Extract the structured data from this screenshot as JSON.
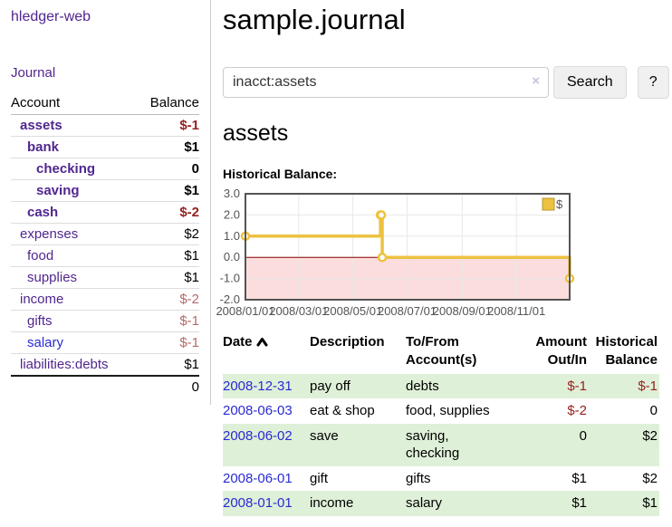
{
  "sidebar": {
    "app_title": "hledger-web",
    "journal_link": "Journal",
    "accounts": {
      "col_account": "Account",
      "col_balance": "Balance",
      "rows": [
        {
          "name": "assets",
          "indent": 0,
          "bold": true,
          "color": "purple",
          "balance": "$-1",
          "balance_style": "neg"
        },
        {
          "name": "bank",
          "indent": 1,
          "bold": true,
          "color": "purple",
          "balance": "$1",
          "balance_style": "pos"
        },
        {
          "name": "checking",
          "indent": 2,
          "bold": true,
          "color": "purple",
          "balance": "0",
          "balance_style": "pos"
        },
        {
          "name": "saving",
          "indent": 2,
          "bold": true,
          "color": "purple",
          "balance": "$1",
          "balance_style": "pos"
        },
        {
          "name": "cash",
          "indent": 1,
          "bold": true,
          "color": "purple",
          "balance": "$-2",
          "balance_style": "neg"
        },
        {
          "name": "expenses",
          "indent": 0,
          "bold": false,
          "color": "purple",
          "balance": "$2",
          "balance_style": "pos"
        },
        {
          "name": "food",
          "indent": 1,
          "bold": false,
          "color": "purple",
          "balance": "$1",
          "balance_style": "pos"
        },
        {
          "name": "supplies",
          "indent": 1,
          "bold": false,
          "color": "purple",
          "balance": "$1",
          "balance_style": "pos"
        },
        {
          "name": "income",
          "indent": 0,
          "bold": false,
          "color": "purple",
          "balance": "$-2",
          "balance_style": "neg_faded"
        },
        {
          "name": "gifts",
          "indent": 1,
          "bold": false,
          "color": "purple",
          "balance": "$-1",
          "balance_style": "neg_faded"
        },
        {
          "name": "salary",
          "indent": 1,
          "bold": false,
          "color": "blue",
          "balance": "$-1",
          "balance_style": "neg_faded"
        },
        {
          "name": "liabilities:debts",
          "indent": 0,
          "bold": false,
          "color": "purple",
          "balance": "$1",
          "balance_style": "pos"
        }
      ],
      "total": "0"
    }
  },
  "main": {
    "title": "sample.journal",
    "search": {
      "value": "inacct:assets",
      "clear_icon": "×",
      "search_button": "Search",
      "help_button": "?"
    },
    "account_heading": "assets",
    "chart_heading": "Historical Balance:"
  },
  "chart_data": {
    "type": "line",
    "step": true,
    "title": "Historical Balance:",
    "series": [
      {
        "name": "$",
        "color": "#edc240",
        "points": [
          [
            "2008-01-01",
            1
          ],
          [
            "2008-06-01",
            2
          ],
          [
            "2008-06-02",
            2
          ],
          [
            "2008-06-03",
            0
          ],
          [
            "2008-12-31",
            -1
          ]
        ]
      }
    ],
    "x_range": [
      "2008-01-01",
      "2008-12-31"
    ],
    "ylim": [
      -2,
      3
    ],
    "y_ticks": [
      "3.0",
      "2.0",
      "1.0",
      "0.0",
      "-1.0",
      "-2.0"
    ],
    "y_tick_values": [
      3,
      2,
      1,
      0,
      -1,
      -2
    ],
    "x_ticks": [
      {
        "label": "2008/01/01",
        "date": "2008-01-01"
      },
      {
        "label": "2008/03/01",
        "date": "2008-03-01"
      },
      {
        "label": "2008/05/01",
        "date": "2008-05-01"
      },
      {
        "label": "2008/07/01",
        "date": "2008-07-01"
      },
      {
        "label": "2008/09/01",
        "date": "2008-09-01"
      },
      {
        "label": "2008/11/01",
        "date": "2008-11-01"
      }
    ],
    "grid": true,
    "legend": {
      "label": "$",
      "position": "top-right"
    },
    "negative_region_color": "#fbdddd",
    "zero_line_color": "#8b0000",
    "plot_border_color": "#545454",
    "grid_color": "#e8e8e8",
    "tick_text_color": "#545454",
    "legend_swatch_border": "#b8962e"
  },
  "register_table": {
    "columns": [
      {
        "lines": [
          "Date"
        ],
        "align": "left",
        "sortable": true,
        "sort": "asc"
      },
      {
        "lines": [
          "Description"
        ],
        "align": "left"
      },
      {
        "lines": [
          "To/From",
          "Account(s)"
        ],
        "align": "left"
      },
      {
        "lines": [
          "Amount",
          "Out/In"
        ],
        "align": "right"
      },
      {
        "lines": [
          "Historical",
          "Balance"
        ],
        "align": "right"
      }
    ],
    "rows": [
      {
        "date": "2008-12-31",
        "description": "pay off",
        "accounts": [
          "debts"
        ],
        "amount": "$-1",
        "amount_negative": true,
        "balance": "$-1",
        "balance_negative": true,
        "highlight": true
      },
      {
        "date": "2008-06-03",
        "description": "eat & shop",
        "accounts": [
          "food, supplies"
        ],
        "amount": "$-2",
        "amount_negative": true,
        "balance": "0",
        "balance_negative": false,
        "highlight": false
      },
      {
        "date": "2008-06-02",
        "description": "save",
        "accounts": [
          "saving,",
          "checking"
        ],
        "amount": "0",
        "amount_negative": false,
        "balance": "$2",
        "balance_negative": false,
        "highlight": true
      },
      {
        "date": "2008-06-01",
        "description": "gift",
        "accounts": [
          "gifts"
        ],
        "amount": "$1",
        "amount_negative": false,
        "balance": "$2",
        "balance_negative": false,
        "highlight": false
      },
      {
        "date": "2008-01-01",
        "description": "income",
        "accounts": [
          "salary"
        ],
        "amount": "$1",
        "amount_negative": false,
        "balance": "$1",
        "balance_negative": false,
        "highlight": true
      }
    ]
  },
  "colors": {
    "link_purple": "#51268f",
    "link_blue": "#2a2ad4",
    "negative": "#97211f",
    "negative_faded": "#b36a6a",
    "row_highlight": "#dff0d8",
    "chart_line": "#edc240"
  }
}
